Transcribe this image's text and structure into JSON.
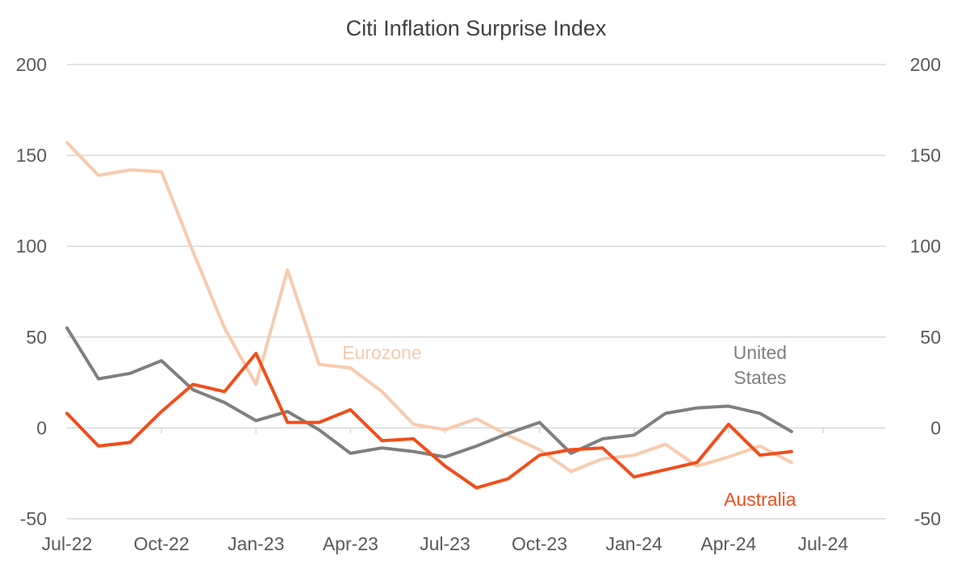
{
  "chart_data": {
    "type": "line",
    "title": "Citi Inflation Surprise Index",
    "xlabel": "",
    "ylabel": "",
    "ylim": [
      -50,
      200
    ],
    "yticks": [
      200,
      150,
      100,
      50,
      0,
      -50
    ],
    "grid": true,
    "legend": "inline labels",
    "x_range": [
      "2022-07",
      "2024-09"
    ],
    "x_ticks": [
      "Jul-22",
      "Oct-22",
      "Jan-23",
      "Apr-23",
      "Jul-23",
      "Oct-23",
      "Jan-24",
      "Apr-24",
      "Jul-24"
    ],
    "x": [
      "2022-07",
      "2022-08",
      "2022-09",
      "2022-10",
      "2022-11",
      "2022-12",
      "2023-01",
      "2023-02",
      "2023-03",
      "2023-04",
      "2023-05",
      "2023-06",
      "2023-07",
      "2023-08",
      "2023-09",
      "2023-10",
      "2023-11",
      "2023-12",
      "2024-01",
      "2024-02",
      "2024-03",
      "2024-04",
      "2024-05",
      "2024-06"
    ],
    "series": [
      {
        "name": "Eurozone",
        "color": "#f8cbad",
        "values": [
          157,
          139,
          142,
          141,
          97,
          55,
          24,
          87,
          35,
          33,
          20,
          2,
          -1,
          5,
          -4,
          -12,
          -24,
          -17,
          -15,
          -9,
          -21,
          -16,
          -10,
          -19
        ]
      },
      {
        "name": "United States",
        "color": "#7f7f7f",
        "values": [
          55,
          27,
          30,
          37,
          21,
          14,
          4,
          9,
          -1,
          -14,
          -11,
          -13,
          -16,
          -10,
          -3,
          3,
          -14,
          -6,
          -4,
          8,
          11,
          12,
          8,
          -2
        ]
      },
      {
        "name": "Australia",
        "color": "#f04e1b",
        "values": [
          8,
          -10,
          -8,
          9,
          24,
          20,
          41,
          3,
          3,
          10,
          -7,
          -6,
          -21,
          -33,
          -28,
          -15,
          -12,
          -11,
          -27,
          -23,
          -19,
          2,
          -15,
          -13
        ]
      }
    ],
    "labels": [
      {
        "series": "Eurozone",
        "lines": [
          "Eurozone"
        ],
        "date": "2023-05",
        "y": 38,
        "color": "#f8cbad"
      },
      {
        "series": "United States",
        "lines": [
          "United",
          "States"
        ],
        "date": "2024-05",
        "y": 38,
        "color": "#7f7f7f"
      },
      {
        "series": "Australia",
        "lines": [
          "Australia"
        ],
        "date": "2024-05",
        "y": -43,
        "color": "#f04e1b"
      }
    ]
  }
}
